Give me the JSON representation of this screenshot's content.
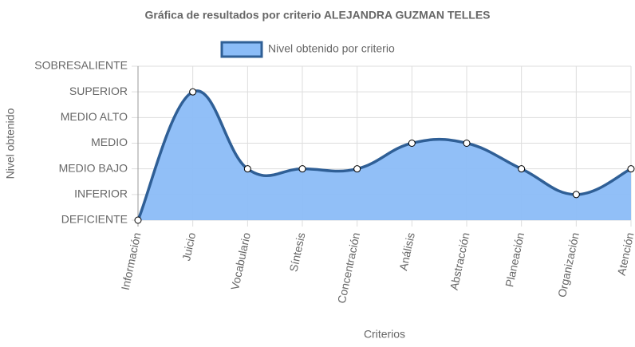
{
  "chart_data": {
    "type": "line",
    "title": "Gráfica de resultados por criterio ALEJANDRA GUZMAN TELLES",
    "x_label": "Criterios",
    "y_label": "Nivel obtenido",
    "categories": [
      "Información",
      "Juicio",
      "Vocabulario",
      "Síntesis",
      "Concentración",
      "Análisis",
      "Abstracción",
      "Planeación",
      "Organización",
      "Atención"
    ],
    "series": [
      {
        "name": "Nivel obtenido por criterio",
        "color": "#2f5f96",
        "fill": "#8bbcf7",
        "values": [
          0,
          5,
          2,
          2,
          2,
          3,
          3,
          2,
          1,
          2
        ]
      }
    ],
    "ylim": [
      0,
      6
    ],
    "yticks": [
      {
        "value": 0,
        "label": "DEFICIENTE"
      },
      {
        "value": 1,
        "label": "INFERIOR"
      },
      {
        "value": 2,
        "label": "MEDIO BAJO"
      },
      {
        "value": 3,
        "label": "MEDIO"
      },
      {
        "value": 4,
        "label": "MEDIO ALTO"
      },
      {
        "value": 5,
        "label": "SUPERIOR"
      },
      {
        "value": 6,
        "label": "SOBRESALIENTE"
      }
    ],
    "grid": true
  }
}
